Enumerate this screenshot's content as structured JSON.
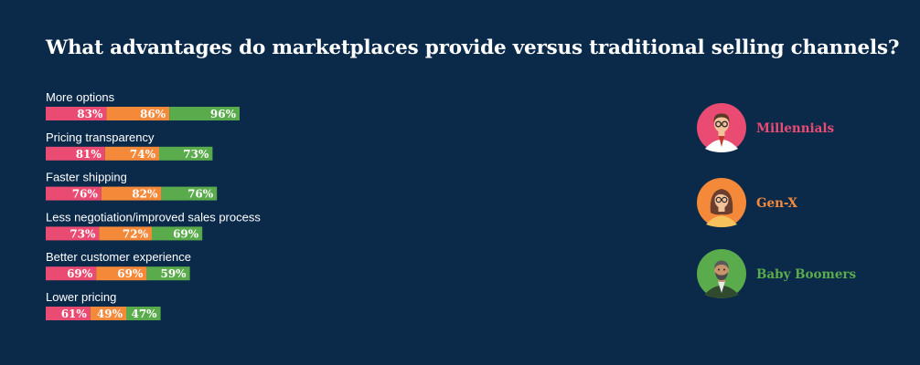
{
  "chart_data": {
    "type": "bar",
    "orientation": "horizontal-stacked",
    "title": "What advantages do marketplaces provide versus traditional selling channels?",
    "categories": [
      "More options",
      "Pricing transparency",
      "Faster shipping",
      "Less negotiation/improved sales process",
      "Better customer experience",
      "Lower pricing"
    ],
    "series": [
      {
        "name": "Millennials",
        "color": "#e94b72",
        "values": [
          83,
          81,
          76,
          73,
          69,
          61
        ]
      },
      {
        "name": "Gen-X",
        "color": "#f4893a",
        "values": [
          86,
          74,
          82,
          72,
          69,
          49
        ]
      },
      {
        "name": "Baby Boomers",
        "color": "#5aab4b",
        "values": [
          96,
          73,
          76,
          69,
          59,
          47
        ]
      }
    ],
    "value_suffix": "%",
    "legend_position": "right",
    "grid": false
  },
  "legend_icons": [
    "millennial-avatar-icon",
    "genx-avatar-icon",
    "baby-boomer-avatar-icon"
  ]
}
